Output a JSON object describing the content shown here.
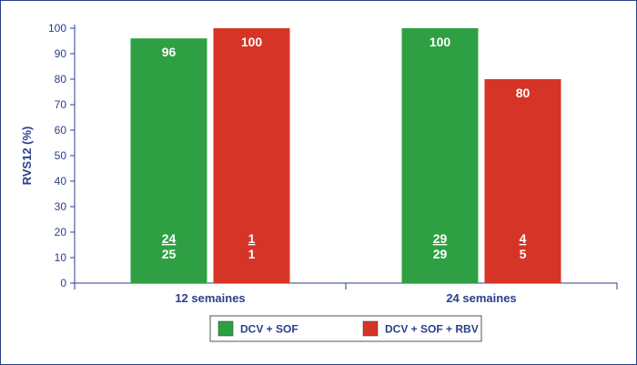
{
  "chart_data": {
    "type": "bar",
    "ylabel": "RVS12 (%)",
    "ylim": [
      0,
      100
    ],
    "yticks": [
      0,
      10,
      20,
      30,
      40,
      50,
      60,
      70,
      80,
      90,
      100
    ],
    "categories": [
      "12 semaines",
      "24 semaines"
    ],
    "legend_position": "bottom-center",
    "series": [
      {
        "name": "DCV + SOF",
        "color": "#2ea043",
        "values": [
          96,
          100
        ],
        "labels": [
          "96",
          "100"
        ],
        "numerators": [
          "24",
          "29"
        ],
        "denominators": [
          "25",
          "29"
        ]
      },
      {
        "name": "DCV + SOF + RBV",
        "color": "#d63426",
        "values": [
          100,
          80
        ],
        "labels": [
          "100",
          "80"
        ],
        "numerators": [
          "1",
          "4"
        ],
        "denominators": [
          "1",
          "5"
        ]
      }
    ]
  }
}
